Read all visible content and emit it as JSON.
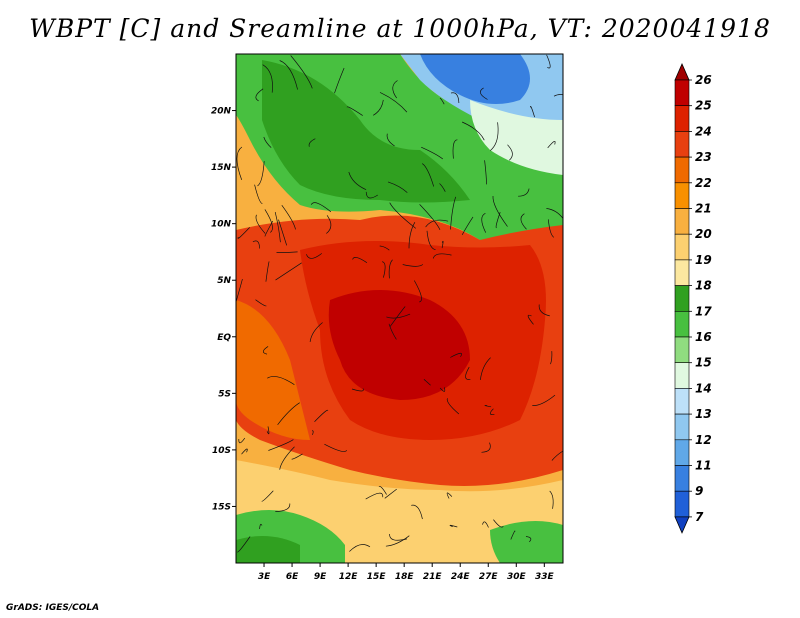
{
  "chart_data": {
    "type": "heatmap",
    "title": "WBPT [C] and Sreamline at 1000hPa, VT: 2020041918",
    "variable": "WBPT [C]",
    "overlay": "Streamline",
    "level": "1000hPa",
    "valid_time": "2020041918",
    "x_range": [
      0,
      35
    ],
    "y_range": [
      -20,
      25
    ],
    "x_ticks": [
      "3E",
      "6E",
      "9E",
      "12E",
      "15E",
      "18E",
      "21E",
      "24E",
      "27E",
      "30E",
      "33E"
    ],
    "y_ticks": [
      "20N",
      "15N",
      "10N",
      "5N",
      "EQ",
      "5S",
      "10S",
      "15S"
    ],
    "colorbar": {
      "levels": [
        "26",
        "25",
        "24",
        "23",
        "22",
        "21",
        "20",
        "19",
        "18",
        "17",
        "16",
        "15",
        "14",
        "13",
        "12",
        "11",
        "9",
        "7"
      ],
      "colors": [
        "#a00000",
        "#c00000",
        "#dd2200",
        "#e84010",
        "#f06a00",
        "#f89000",
        "#f8b040",
        "#fcd070",
        "#fce8a0",
        "#30a020",
        "#48c040",
        "#90dc80",
        "#e0f8e0",
        "#bde0f8",
        "#90c8f0",
        "#60a8e8",
        "#3880e0",
        "#2060d8",
        "#1040c0"
      ]
    }
  },
  "footer": {
    "credit": "GrADS: IGES/COLA"
  }
}
